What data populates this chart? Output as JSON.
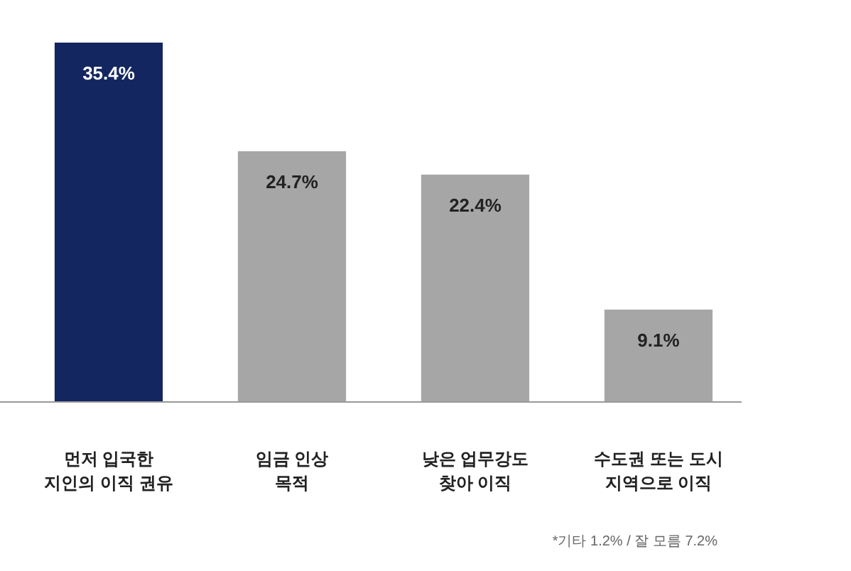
{
  "chart_data": {
    "type": "bar",
    "categories": [
      "먼저 입국한\n지인의 이직 권유",
      "임금 인상\n목적",
      "낮은 업무강도\n찾아 이직",
      "수도권 또는 도시\n지역으로 이직"
    ],
    "values": [
      35.4,
      24.7,
      22.4,
      9.1
    ],
    "value_labels": [
      "35.4%",
      "24.7%",
      "22.4%",
      "9.1%"
    ],
    "colors": [
      "#132660",
      "#a6a6a6",
      "#a6a6a6",
      "#a6a6a6"
    ],
    "annotations": [
      "*기타 1.2% / 잘 모름 7.2%"
    ]
  }
}
